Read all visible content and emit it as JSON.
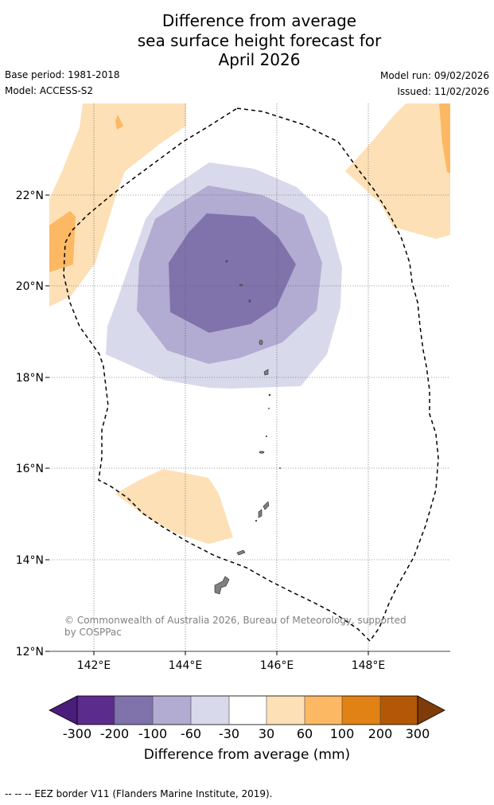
{
  "title": {
    "line1": "Difference from average",
    "line2": "sea surface height forecast for",
    "line3": "April 2026"
  },
  "meta": {
    "base_period": "Base period: 1981-2018",
    "model": "Model: ACCESS-S2",
    "model_run": "Model run: 09/02/2026",
    "issued": "Issued: 11/02/2026"
  },
  "axes": {
    "lat_labels": [
      "22°N",
      "20°N",
      "18°N",
      "16°N",
      "14°N",
      "12°N"
    ],
    "lon_labels": [
      "142°E",
      "144°E",
      "146°E",
      "148°E"
    ]
  },
  "credit": "© Commonwealth of Australia 2026, Bureau of Meteorology, supported by COSPPac",
  "colorbar": {
    "ticks": [
      "-300",
      "-200",
      "-100",
      "-60",
      "-30",
      "30",
      "60",
      "100",
      "200",
      "300"
    ],
    "colors": [
      "#4a1d7a",
      "#5c2c8c",
      "#8073ac",
      "#b2abd2",
      "#d8daeb",
      "#ffffff",
      "#fee0b6",
      "#fdb863",
      "#e08214",
      "#b35806",
      "#7f3b08"
    ],
    "label": "Difference from average (mm)"
  },
  "footer": "--  --  -- EEZ border V11 (Flanders Marine Institute, 2019).",
  "colors": {
    "light_purple": "#d8daeb",
    "mid_purple": "#b2abd2",
    "dark_purple": "#8073ac",
    "light_orange": "#fee0b6",
    "orange": "#fdb863",
    "land": "#808080"
  }
}
